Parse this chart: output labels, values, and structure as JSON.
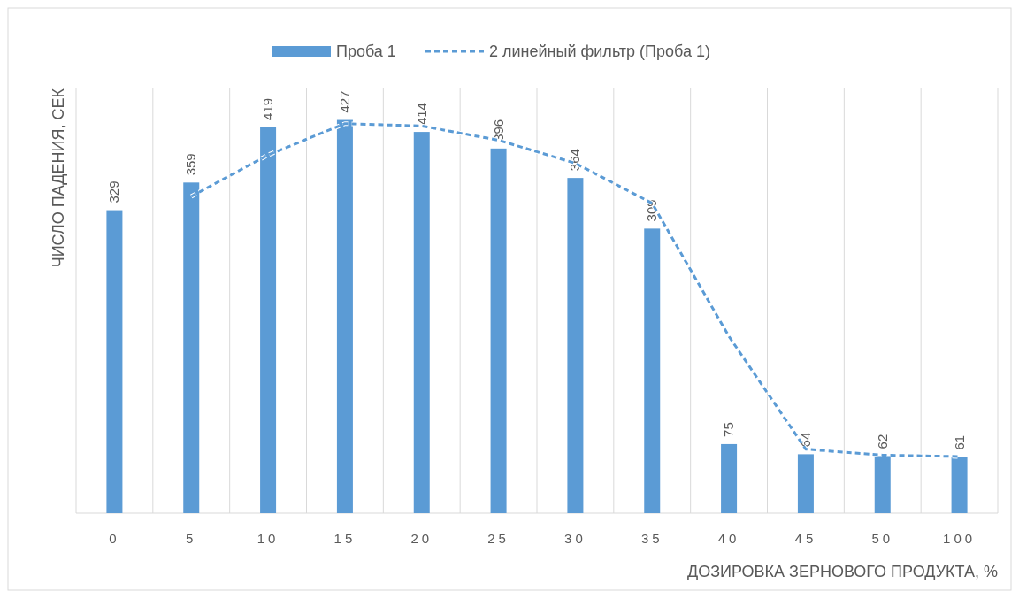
{
  "chart_data": {
    "type": "bar",
    "xlabel": "ДОЗИРОВКА ЗЕРНОВОГО ПРОДУКТА, %",
    "ylabel": "ЧИСЛО ПАДЕНИЯ, СЕК",
    "categories": [
      "0",
      "5",
      "10",
      "15",
      "20",
      "25",
      "30",
      "35",
      "40",
      "45",
      "50",
      "100"
    ],
    "series": [
      {
        "name": "Проба 1",
        "color": "#5b9bd5",
        "values": [
          329,
          359,
          419,
          427,
          414,
          396,
          364,
          309,
          75,
          64,
          62,
          61
        ],
        "value_labels": [
          "329",
          "359",
          "419",
          "427",
          "414",
          "396",
          "364",
          "309",
          "75",
          "64",
          "62",
          "61"
        ]
      },
      {
        "name": "2 линейный фильтр (Проба 1)",
        "type": "line",
        "color": "#5b9bd5",
        "line_style": "dashed",
        "marker": "none",
        "values": [
          null,
          344,
          389,
          423,
          420.5,
          405,
          380,
          336.5,
          192,
          69.5,
          63,
          61.5
        ]
      }
    ],
    "grid": "x",
    "legend": "top"
  }
}
